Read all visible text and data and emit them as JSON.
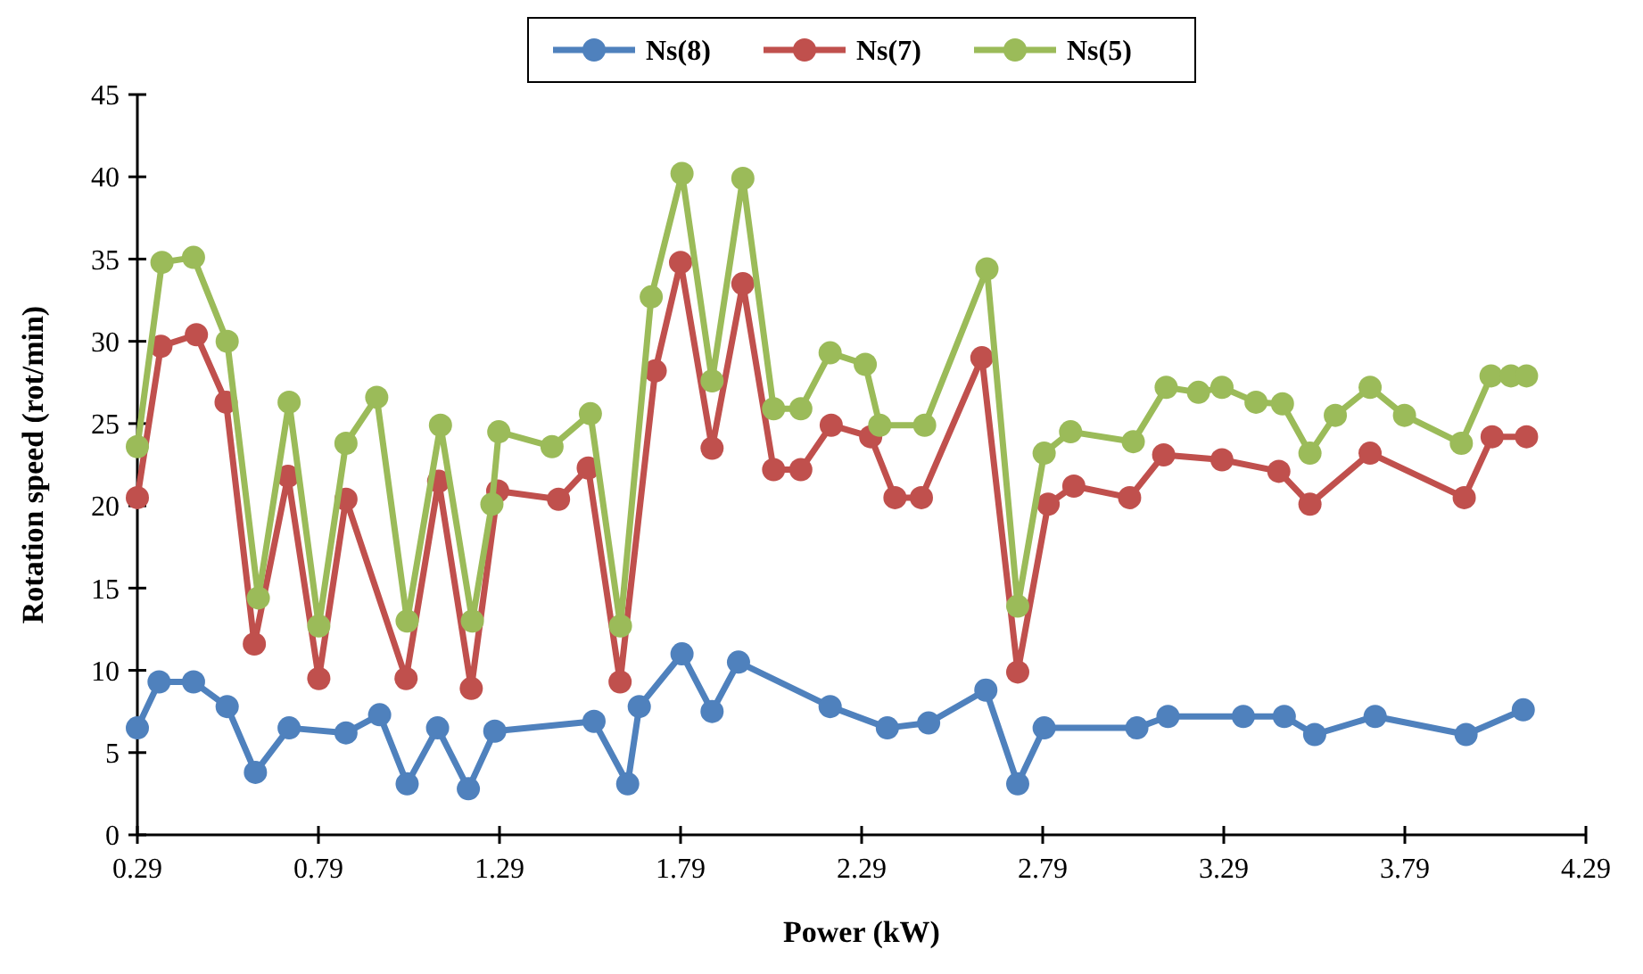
{
  "chart_data": {
    "type": "line",
    "xlabel": "Power (kW)",
    "ylabel": "Rotation speed (rot/min)",
    "xlim": [
      0.29,
      4.29
    ],
    "xticks": [
      0.29,
      0.79,
      1.29,
      1.79,
      2.29,
      2.79,
      3.29,
      3.79,
      4.29
    ],
    "ylim": [
      0,
      45
    ],
    "yticks": [
      0,
      5,
      10,
      15,
      20,
      25,
      30,
      35,
      40,
      45
    ],
    "grid": false,
    "legend": "top",
    "marker": "circle",
    "line_style": "solid",
    "series": [
      {
        "name": "Ns(8)",
        "color": "#4f81bd",
        "x": [
          0.29,
          0.35,
          0.445,
          0.538,
          0.616,
          0.709,
          0.866,
          0.959,
          1.035,
          1.119,
          1.204,
          1.277,
          1.551,
          1.644,
          1.676,
          1.794,
          1.877,
          1.95,
          2.203,
          2.361,
          2.475,
          2.633,
          2.721,
          2.794,
          3.05,
          3.136,
          3.344,
          3.457,
          3.541,
          3.708,
          3.959,
          4.117
        ],
        "values": [
          6.5,
          9.3,
          9.3,
          7.8,
          3.8,
          6.5,
          6.2,
          7.3,
          3.1,
          6.5,
          2.8,
          6.3,
          6.9,
          3.1,
          7.8,
          11.0,
          7.5,
          10.5,
          7.8,
          6.5,
          6.8,
          8.8,
          3.1,
          6.5,
          6.5,
          7.2,
          7.2,
          7.2,
          6.1,
          7.2,
          6.1,
          7.6
        ]
      },
      {
        "name": "Ns(7)",
        "color": "#c0504d",
        "x": [
          0.29,
          0.355,
          0.453,
          0.535,
          0.613,
          0.706,
          0.791,
          0.866,
          1.032,
          1.122,
          1.212,
          1.285,
          1.453,
          1.535,
          1.623,
          1.72,
          1.79,
          1.877,
          1.962,
          2.047,
          2.122,
          2.206,
          2.315,
          2.382,
          2.455,
          2.622,
          2.721,
          2.805,
          2.876,
          3.03,
          3.124,
          3.285,
          3.442,
          3.528,
          3.694,
          3.954,
          4.031,
          4.126
        ],
        "values": [
          20.5,
          29.7,
          30.4,
          26.3,
          11.6,
          21.8,
          9.5,
          20.4,
          9.5,
          21.5,
          8.9,
          20.9,
          20.4,
          22.3,
          9.3,
          28.2,
          34.8,
          23.5,
          33.5,
          22.2,
          22.2,
          24.9,
          24.2,
          20.5,
          20.5,
          29.0,
          9.9,
          20.1,
          21.2,
          20.5,
          23.1,
          22.8,
          22.1,
          20.1,
          23.2,
          20.5,
          24.2,
          24.2
        ]
      },
      {
        "name": "Ns(5)",
        "color": "#9bbb59",
        "x": [
          0.29,
          0.358,
          0.445,
          0.538,
          0.624,
          0.709,
          0.791,
          0.866,
          0.951,
          1.035,
          1.127,
          1.215,
          1.269,
          1.288,
          1.435,
          1.541,
          1.624,
          1.709,
          1.794,
          1.877,
          1.962,
          2.047,
          2.122,
          2.203,
          2.3,
          2.34,
          2.464,
          2.636,
          2.721,
          2.794,
          2.867,
          3.04,
          3.131,
          3.22,
          3.285,
          3.379,
          3.452,
          3.528,
          3.598,
          3.694,
          3.789,
          3.946,
          4.028,
          4.083,
          4.126
        ],
        "values": [
          23.6,
          34.8,
          35.1,
          30.0,
          14.4,
          26.3,
          12.7,
          23.8,
          26.6,
          13.0,
          24.9,
          13.0,
          20.1,
          24.5,
          23.6,
          25.6,
          12.7,
          32.7,
          40.2,
          27.6,
          39.9,
          25.9,
          25.9,
          29.3,
          28.6,
          24.9,
          24.9,
          34.4,
          13.9,
          23.2,
          24.5,
          23.9,
          27.2,
          26.9,
          27.2,
          26.3,
          26.2,
          23.2,
          25.5,
          27.2,
          25.5,
          23.8,
          27.9,
          27.9,
          27.9
        ]
      }
    ]
  }
}
